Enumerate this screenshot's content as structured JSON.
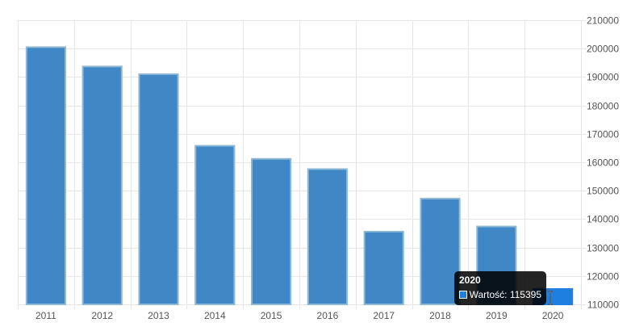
{
  "chart_data": {
    "type": "bar",
    "categories": [
      "2011",
      "2012",
      "2013",
      "2014",
      "2015",
      "2016",
      "2017",
      "2018",
      "2019",
      "2020"
    ],
    "values": [
      200500,
      193700,
      191000,
      165800,
      161200,
      157600,
      135600,
      147200,
      137400,
      115395
    ],
    "ylim": [
      110000,
      210000
    ],
    "yticks": [
      110000,
      120000,
      130000,
      140000,
      150000,
      160000,
      170000,
      180000,
      190000,
      200000,
      210000
    ],
    "y_axis_position": "right",
    "grid": true,
    "highlighted_index": 9,
    "colors": {
      "bar": "#3f88c5",
      "bar_border": "#8fb8d6",
      "bar_highlight": "#1e7fe0",
      "grid": "#e6e6e6"
    }
  },
  "tooltip": {
    "title": "2020",
    "label": "Wartość: 115395"
  }
}
